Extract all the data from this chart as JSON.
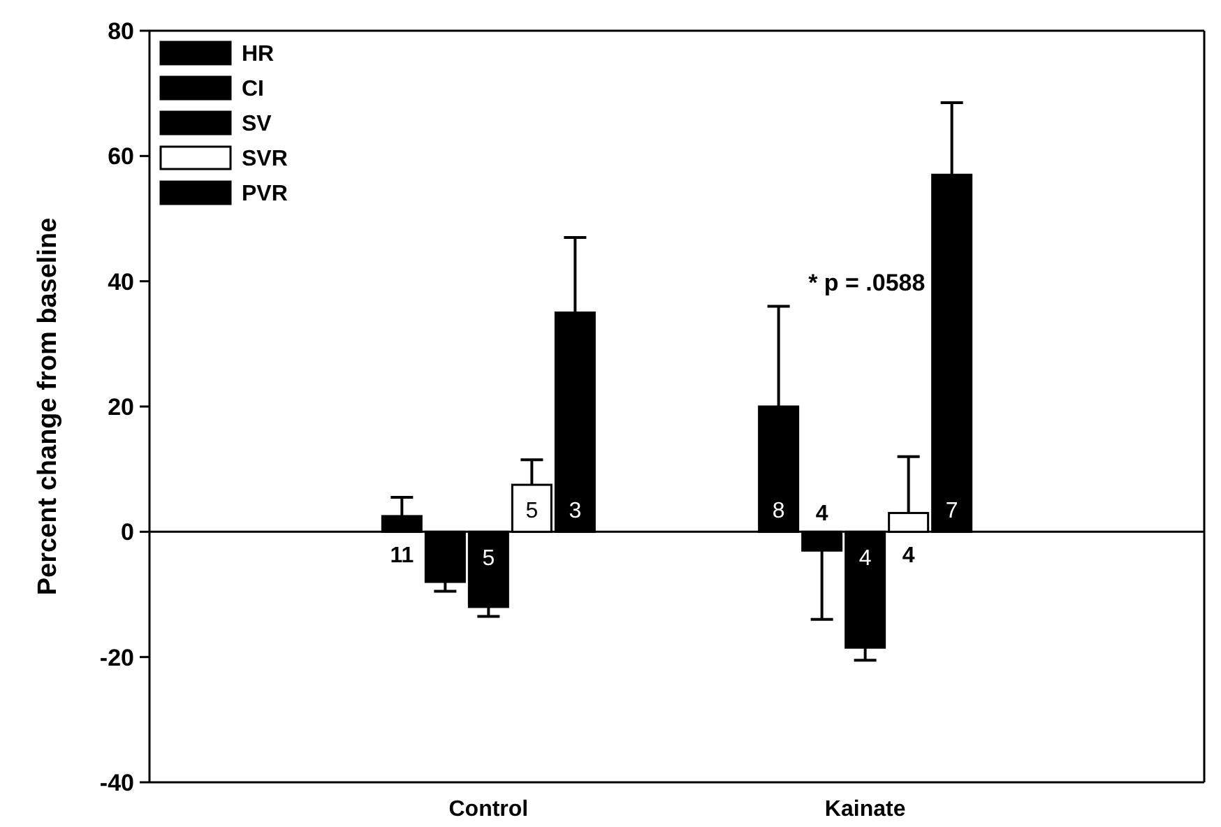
{
  "chart_data": {
    "type": "bar",
    "ylabel": "Percent change from baseline",
    "categories": [
      "Control",
      "Kainate"
    ],
    "series": [
      {
        "name": "HR",
        "color": "#000000",
        "values": [
          2.5,
          20
        ],
        "errors": [
          [
            2.5,
            5.5
          ],
          [
            20,
            36
          ]
        ]
      },
      {
        "name": "CI",
        "color": "#000000",
        "values": [
          -8,
          -3
        ],
        "errors": [
          [
            -9.5,
            -8
          ],
          [
            -14,
            -3
          ]
        ]
      },
      {
        "name": "SV",
        "color": "#000000",
        "values": [
          -12,
          -18.5
        ],
        "errors": [
          [
            -13.5,
            -12
          ],
          [
            -20.5,
            -18.5
          ]
        ]
      },
      {
        "name": "SVR",
        "color": "#ffffff",
        "values": [
          7.5,
          3
        ],
        "errors": [
          [
            7.5,
            11.5
          ],
          [
            3,
            12
          ]
        ]
      },
      {
        "name": "PVR",
        "color": "#000000",
        "values": [
          35,
          57
        ],
        "errors": [
          [
            35,
            47
          ],
          [
            57,
            68.5
          ]
        ]
      }
    ],
    "ylim": [
      -40,
      80
    ],
    "yticks": [
      -40,
      -20,
      0,
      20,
      40,
      60,
      80
    ],
    "ref_lines": [
      {
        "axis": "y",
        "value": 0
      }
    ],
    "annotations": [
      "* p = .0588",
      "11",
      "5",
      "5",
      "3",
      "8",
      "4",
      "4",
      "4",
      "7"
    ],
    "legend": "top left",
    "grid": false
  }
}
